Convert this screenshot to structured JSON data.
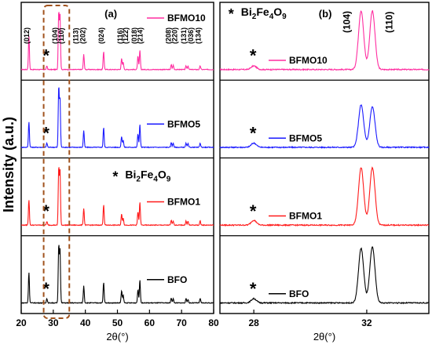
{
  "figure": {
    "ylabel": "Intensity (a.u.)",
    "impurity_marker": "*",
    "impurity_formula": {
      "base": "Bi",
      "s1": "2",
      "mid": "Fe",
      "s2": "4",
      "end": "O",
      "s3": "9"
    }
  },
  "chart_data": [
    {
      "type": "line",
      "panel_label": "(a)",
      "xlabel": "2θ(°)",
      "ylabel": "Intensity (a.u.)",
      "xlim": [
        20,
        80
      ],
      "x_ticks": [
        20,
        30,
        40,
        50,
        60,
        70,
        80
      ],
      "highlight_range": [
        27,
        35
      ],
      "grid": false,
      "legend_placement": "right of each stacked spectrum",
      "series": [
        {
          "name": "BFMO10",
          "color": "#ff2da0",
          "peaks": [
            [
              22.4,
              0.55
            ],
            [
              28.0,
              0.06
            ],
            [
              31.7,
              0.95
            ],
            [
              32.1,
              0.9
            ],
            [
              39.5,
              0.25
            ],
            [
              45.7,
              0.3
            ],
            [
              51.3,
              0.18
            ],
            [
              51.8,
              0.12
            ],
            [
              56.4,
              0.22
            ],
            [
              57.0,
              0.32
            ],
            [
              66.8,
              0.08
            ],
            [
              67.4,
              0.07
            ],
            [
              71.4,
              0.06
            ],
            [
              72.0,
              0.06
            ],
            [
              75.8,
              0.06
            ]
          ]
        },
        {
          "name": "BFMO5",
          "color": "#1a1aff",
          "peaks": [
            [
              22.4,
              0.42
            ],
            [
              28.0,
              0.07
            ],
            [
              31.7,
              1.0
            ],
            [
              32.1,
              0.8
            ],
            [
              39.5,
              0.28
            ],
            [
              45.7,
              0.33
            ],
            [
              51.3,
              0.18
            ],
            [
              51.8,
              0.12
            ],
            [
              56.4,
              0.22
            ],
            [
              57.0,
              0.38
            ],
            [
              66.8,
              0.08
            ],
            [
              67.4,
              0.07
            ],
            [
              71.4,
              0.07
            ],
            [
              72.0,
              0.06
            ],
            [
              75.8,
              0.07
            ]
          ]
        },
        {
          "name": "BFMO1",
          "color": "#ff1a1a",
          "peaks": [
            [
              22.4,
              0.42
            ],
            [
              28.0,
              0.06
            ],
            [
              31.7,
              0.95
            ],
            [
              32.1,
              0.9
            ],
            [
              39.5,
              0.28
            ],
            [
              45.7,
              0.34
            ],
            [
              51.3,
              0.18
            ],
            [
              51.8,
              0.12
            ],
            [
              56.4,
              0.22
            ],
            [
              57.0,
              0.38
            ],
            [
              66.8,
              0.08
            ],
            [
              67.4,
              0.07
            ],
            [
              71.4,
              0.07
            ],
            [
              72.0,
              0.06
            ],
            [
              75.8,
              0.07
            ]
          ]
        },
        {
          "name": "BFO",
          "color": "#000000",
          "peaks": [
            [
              22.4,
              0.5
            ],
            [
              28.0,
              0.07
            ],
            [
              31.7,
              0.95
            ],
            [
              32.1,
              0.88
            ],
            [
              39.5,
              0.28
            ],
            [
              45.7,
              0.34
            ],
            [
              51.3,
              0.2
            ],
            [
              51.8,
              0.13
            ],
            [
              56.4,
              0.22
            ],
            [
              57.0,
              0.38
            ],
            [
              66.8,
              0.08
            ],
            [
              67.4,
              0.07
            ],
            [
              71.4,
              0.07
            ],
            [
              72.0,
              0.06
            ],
            [
              75.8,
              0.07
            ]
          ]
        }
      ],
      "annotations": [
        {
          "text": "(012)",
          "x": 22.4
        },
        {
          "text": "(104)",
          "x": 31.3
        },
        {
          "text": "(110)",
          "x": 33.2
        },
        {
          "text": "(113)",
          "x": 37.8
        },
        {
          "text": "(202)",
          "x": 40.0
        },
        {
          "text": "(024)",
          "x": 45.7
        },
        {
          "text": "(116)",
          "x": 51.6
        },
        {
          "text": "(122)",
          "x": 53.3
        },
        {
          "text": "(018)",
          "x": 56.0
        },
        {
          "text": "(214)",
          "x": 57.8
        },
        {
          "text": "(208)",
          "x": 66.6
        },
        {
          "text": "(220)",
          "x": 68.6
        },
        {
          "text": "(131)",
          "x": 71.4
        },
        {
          "text": "(036)",
          "x": 73.6
        },
        {
          "text": "(134)",
          "x": 76.0
        }
      ]
    },
    {
      "type": "line",
      "panel_label": "(b)",
      "xlabel": "2θ(°)",
      "xlim": [
        26.8,
        34.2
      ],
      "x_ticks": [
        28,
        32
      ],
      "grid": false,
      "legend_placement": "middle of each stacked spectrum",
      "annotations": [
        {
          "text": "(104)",
          "x": 31.4
        },
        {
          "text": "(110)",
          "x": 32.9
        }
      ],
      "series": [
        {
          "name": "BFMO10",
          "color": "#ff2da0",
          "peaks": [
            [
              28.0,
              0.06
            ],
            [
              31.8,
              0.97
            ],
            [
              32.2,
              0.97
            ]
          ]
        },
        {
          "name": "BFMO5",
          "color": "#1a1aff",
          "peaks": [
            [
              28.0,
              0.07
            ],
            [
              31.8,
              0.7
            ],
            [
              32.2,
              0.67
            ]
          ]
        },
        {
          "name": "BFMO1",
          "color": "#ff1a1a",
          "peaks": [
            [
              28.0,
              0.08
            ],
            [
              31.8,
              0.95
            ],
            [
              32.2,
              0.95
            ]
          ]
        },
        {
          "name": "BFO",
          "color": "#000000",
          "peaks": [
            [
              28.0,
              0.07
            ],
            [
              31.8,
              0.9
            ],
            [
              32.2,
              0.92
            ]
          ]
        }
      ]
    }
  ]
}
